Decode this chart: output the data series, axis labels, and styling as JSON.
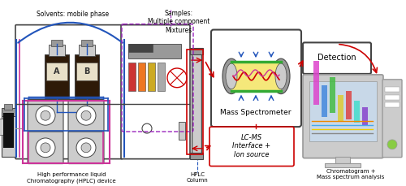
{
  "background_color": "#ffffff",
  "labels": {
    "solvents": "Solvents: mobile phase",
    "samples": "Samples:\nMultiple component\nMixtures",
    "hplc_device": "High performance liquid\nChromatography (HPLC) device",
    "hplc_column": "HPLC\nColumn",
    "mass_spec": "Mass Spectrometer",
    "lcms": "LC-MS\nInterface +\nIon source",
    "detection": "Detection",
    "chromatogram": "Chromatogram +\nMass spectrum analysis"
  },
  "colors": {
    "red": "#cc0000",
    "blue": "#2255bb",
    "pink": "#cc3399",
    "gray": "#999999",
    "light_gray": "#cccccc",
    "dark_gray": "#444444",
    "bottle_brown": "#2e1a08",
    "yellow": "#ffee99",
    "blue_arrow": "#3377cc",
    "purple": "#9922bb",
    "green": "#33aa33",
    "screen_bg": "#c8d8e8",
    "ms_yellow": "#f5e87a",
    "ms_gray": "#888888"
  },
  "figsize": [
    5.0,
    2.29
  ],
  "dpi": 100
}
